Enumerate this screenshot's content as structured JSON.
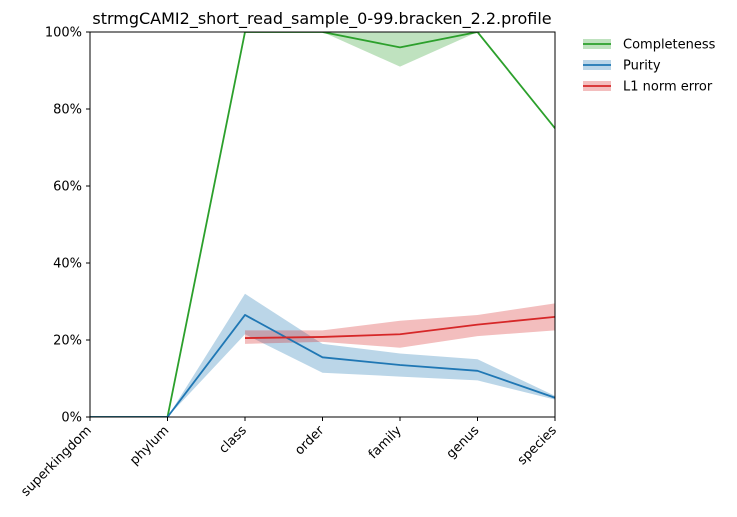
{
  "chart_data": {
    "type": "line",
    "title": "strmgCAMI2_short_read_sample_0-99.bracken_2.2.profile",
    "xlabel": "",
    "ylabel": "",
    "categories": [
      "superkingdom",
      "phylum",
      "class",
      "order",
      "family",
      "genus",
      "species"
    ],
    "ylim": [
      0,
      100
    ],
    "yticks": [
      "0%",
      "20%",
      "40%",
      "60%",
      "80%",
      "100%"
    ],
    "yticks_values": [
      0,
      20,
      40,
      60,
      80,
      100
    ],
    "legend_position": "outside-top-right",
    "series": [
      {
        "name": "Completeness",
        "color": "#2ca02c",
        "band_color": "#2ca02c",
        "values": [
          0,
          0,
          100,
          100,
          96,
          100,
          75
        ],
        "lower": [
          0,
          0,
          100,
          100,
          91,
          100,
          75
        ],
        "upper": [
          0,
          0,
          100,
          100,
          100,
          100,
          75
        ]
      },
      {
        "name": "Purity",
        "color": "#1f77b4",
        "band_color": "#1f77b4",
        "values": [
          0,
          0,
          26.5,
          15.5,
          13.5,
          12,
          5
        ],
        "lower": [
          0,
          0,
          21.5,
          11.5,
          10.5,
          9.5,
          4.5
        ],
        "upper": [
          0,
          0,
          32,
          19,
          16.5,
          15,
          5.5
        ]
      },
      {
        "name": "L1 norm error",
        "color": "#d62728",
        "band_color": "#d62728",
        "values": [
          null,
          null,
          20.5,
          20.8,
          21.5,
          24,
          26
        ],
        "lower": [
          null,
          null,
          19,
          19.5,
          18,
          21,
          22.5
        ],
        "upper": [
          null,
          null,
          22.5,
          22.5,
          25,
          26.5,
          29.5
        ]
      }
    ]
  }
}
